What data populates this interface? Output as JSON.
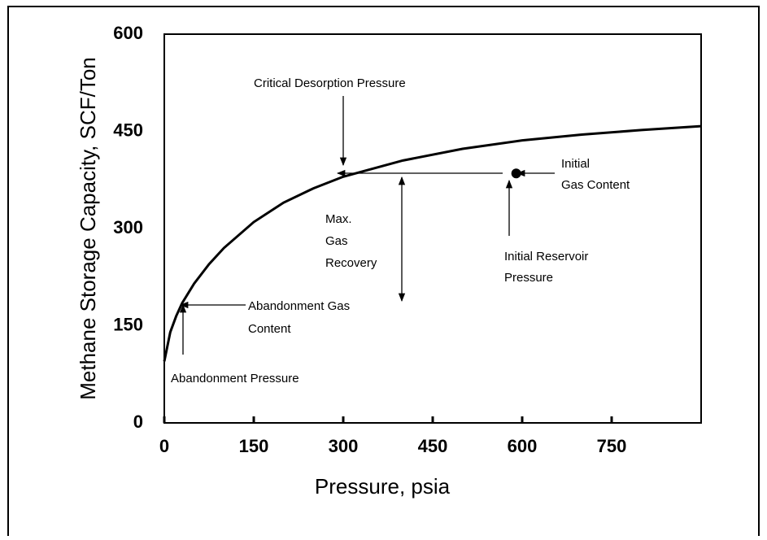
{
  "chart_data": {
    "type": "line",
    "xlabel": "Pressure, psia",
    "ylabel": "Methane Storage Capacity, SCF/Ton",
    "xlim": [
      0,
      900
    ],
    "xticks": [
      0,
      150,
      300,
      450,
      600,
      750
    ],
    "ylim": [
      0,
      600
    ],
    "yticks": [
      0,
      150,
      300,
      450,
      600
    ],
    "series": [
      {
        "color": "#000000",
        "x": [
          0,
          10,
          20,
          30,
          50,
          75,
          100,
          150,
          200,
          250,
          300,
          400,
          500,
          600,
          700,
          800,
          900
        ],
        "values": [
          95,
          140,
          165,
          185,
          215,
          245,
          270,
          310,
          340,
          362,
          380,
          405,
          423,
          436,
          445,
          452,
          458
        ]
      }
    ],
    "marker": {
      "x": 590,
      "value": 385,
      "color": "#000000"
    },
    "annotations": {
      "critical": [
        "Critical Desorption Pressure"
      ],
      "initial_gas": [
        "Initial",
        "Gas Content"
      ],
      "initial_pressure": [
        "Initial Reservoir",
        "Pressure"
      ],
      "recovery": [
        "Max.",
        "Gas",
        "Recovery"
      ],
      "abandon_gas": [
        "Abandonment Gas",
        "Content"
      ],
      "abandon_pressure": [
        "Abandonment Pressure"
      ]
    }
  }
}
